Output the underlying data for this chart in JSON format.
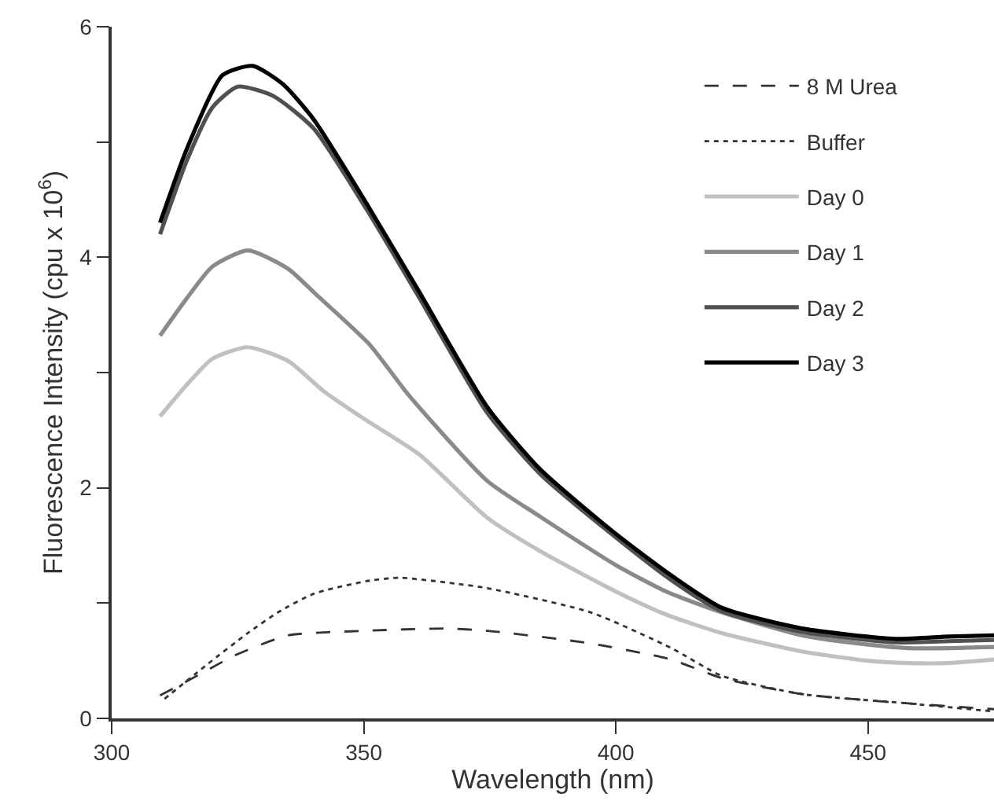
{
  "chart_data": {
    "type": "line",
    "xlabel": "Wavelength (nm)",
    "ylabel": "Fluorescence Intensity (cpu x 10$^{6}$)",
    "xlim": [
      300,
      475
    ],
    "xticks": [
      300,
      350,
      400,
      450
    ],
    "ylim": [
      0,
      6
    ],
    "yticks": [
      0,
      {
        "value": 1,
        "label": null
      },
      2,
      {
        "value": 3,
        "label": null
      },
      4,
      {
        "value": 5,
        "label": null
      },
      6
    ],
    "legend": "top right",
    "marker": "none",
    "series": [
      {
        "name": "8 M Urea",
        "color": "#333333",
        "line_style": "dashed",
        "x": [
          309.6,
          314,
          319,
          324.6,
          335,
          350.5,
          366,
          374.5,
          395,
          411,
          421,
          437,
          458,
          475
        ],
        "values": [
          0.2,
          0.3,
          0.42,
          0.55,
          0.72,
          0.76,
          0.78,
          0.76,
          0.65,
          0.51,
          0.35,
          0.21,
          0.13,
          0.08
        ]
      },
      {
        "name": "Buffer",
        "color": "#333333",
        "line_style": "dotted",
        "x": [
          310.5,
          319,
          327,
          333,
          340,
          350.5,
          357,
          368,
          374.5,
          395,
          411,
          421,
          437,
          458,
          475
        ],
        "values": [
          0.17,
          0.47,
          0.74,
          0.92,
          1.08,
          1.19,
          1.22,
          1.17,
          1.13,
          0.92,
          0.61,
          0.37,
          0.21,
          0.13,
          0.06
        ]
      },
      {
        "name": "Day 0",
        "color": "#c0c0c0",
        "line_style": "solid",
        "x": [
          309.6,
          315,
          320,
          327,
          335,
          342,
          350,
          361,
          374.5,
          385,
          400,
          410,
          421,
          437,
          450,
          458,
          466,
          475
        ],
        "values": [
          2.62,
          2.9,
          3.12,
          3.22,
          3.1,
          2.84,
          2.6,
          2.29,
          1.74,
          1.45,
          1.1,
          0.9,
          0.74,
          0.58,
          0.5,
          0.48,
          0.48,
          0.51
        ]
      },
      {
        "name": "Day 1",
        "color": "#8a8a8a",
        "line_style": "solid",
        "x": [
          309.6,
          315,
          320,
          327,
          335,
          340,
          351,
          359,
          374.5,
          385,
          400,
          410,
          421,
          437,
          450,
          458,
          466,
          475
        ],
        "values": [
          3.32,
          3.65,
          3.92,
          4.06,
          3.9,
          3.7,
          3.25,
          2.8,
          2.06,
          1.75,
          1.33,
          1.1,
          0.92,
          0.72,
          0.64,
          0.61,
          0.61,
          0.62
        ]
      },
      {
        "name": "Day 2",
        "color": "#505050",
        "line_style": "solid",
        "x": [
          309.6,
          315,
          320,
          325,
          332,
          340,
          350.5,
          361,
          374.5,
          385,
          400,
          411,
          421,
          437,
          455.5,
          466,
          475
        ],
        "values": [
          4.2,
          4.85,
          5.3,
          5.48,
          5.4,
          5.12,
          4.42,
          3.65,
          2.65,
          2.12,
          1.57,
          1.2,
          0.93,
          0.75,
          0.66,
          0.67,
          0.68
        ]
      },
      {
        "name": "Day 3",
        "color": "#000000",
        "line_style": "solid",
        "x": [
          309.6,
          315,
          322,
          328,
          334,
          340,
          350.5,
          361,
          374.5,
          385,
          400,
          411,
          421,
          437,
          455.5,
          466,
          475
        ],
        "values": [
          4.3,
          4.95,
          5.58,
          5.66,
          5.5,
          5.2,
          4.47,
          3.7,
          2.7,
          2.16,
          1.6,
          1.24,
          0.96,
          0.78,
          0.69,
          0.71,
          0.72
        ]
      }
    ]
  }
}
